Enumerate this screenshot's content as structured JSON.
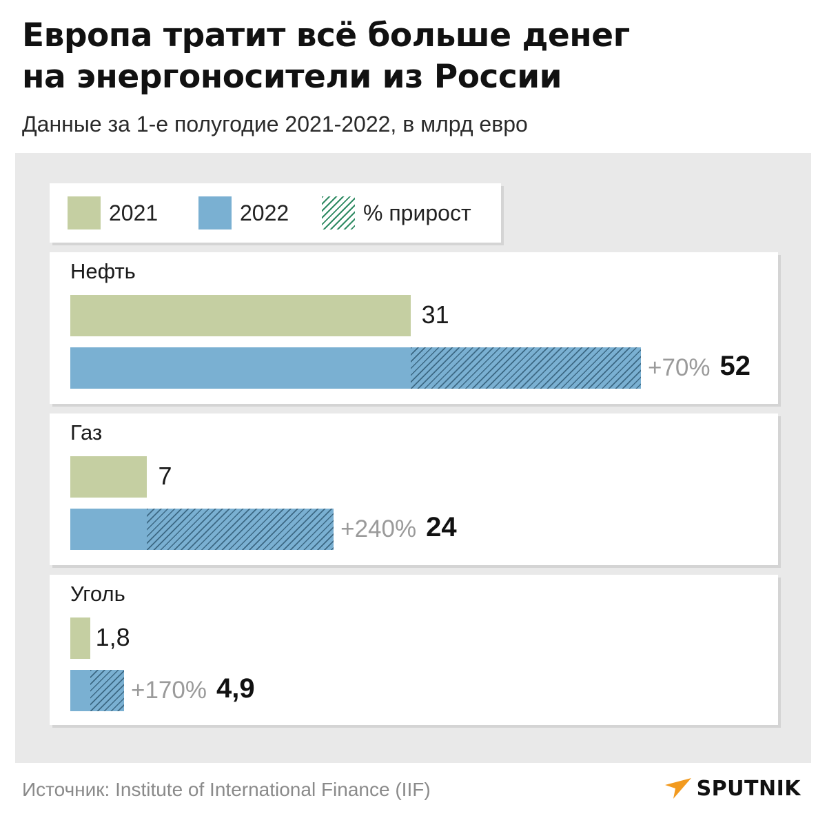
{
  "header": {
    "title_line1": "Европа тратит всё больше денег",
    "title_line2": "на энергоносители из России",
    "subtitle": "Данные за 1-е полугодие 2021-2022, в млрд евро"
  },
  "legend": {
    "items": [
      {
        "label": "2021",
        "color": "#c5cfa2"
      },
      {
        "label": "2022",
        "color": "#7ab0d2"
      },
      {
        "label": "% прирост",
        "pattern": "hatch"
      }
    ]
  },
  "chart_data": {
    "type": "bar",
    "orientation": "horizontal",
    "title": "Европа тратит всё больше денег на энергоносители из России",
    "subtitle": "Данные за 1-е полугодие 2021-2022, в млрд евро",
    "categories": [
      "Нефть",
      "Газ",
      "Уголь"
    ],
    "series": [
      {
        "name": "2021",
        "values": [
          31,
          7,
          1.8
        ],
        "labels": [
          "31",
          "7",
          "1,8"
        ],
        "color": "#c5cfa2"
      },
      {
        "name": "2022",
        "values": [
          52,
          24,
          4.9
        ],
        "labels": [
          "52",
          "24",
          "4,9"
        ],
        "color": "#7ab0d2"
      }
    ],
    "growth_labels": [
      "+70%",
      "+240%",
      "+170%"
    ],
    "xlim": [
      0,
      52
    ],
    "grid": false,
    "legend_position": "top-left"
  },
  "footer": {
    "source": "Источник: Institute of International Finance (IIF)",
    "logo_text": "SPUTNIK",
    "watermark_text": "SPUTNIK"
  }
}
